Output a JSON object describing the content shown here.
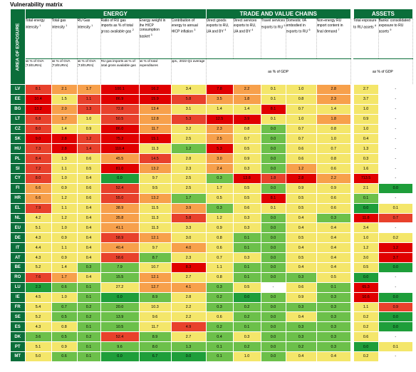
{
  "title": "Vulnerability matrix",
  "group_labels": {
    "energy": "ENERGY",
    "trade": "TRADE AND VALUE CHAINS",
    "assets": "ASSETS"
  },
  "area_label": "AREA OF EXPOSURE",
  "columns": [
    {
      "label": "Total energy intensity",
      "note": "1",
      "unit": "as % of GVA (TJ/EURm)"
    },
    {
      "label": "Total gas intensity",
      "note": "1",
      "unit": "as % of GVA (TJ/EURm)"
    },
    {
      "label": "RU Gas intensity",
      "note": "1",
      "unit": "as % of GVA (TJ/EURm)"
    },
    {
      "label": "Ratio of RU gas imports as % of total gross available gas",
      "note": "2",
      "unit": "RU gas imports as % of total gross available gas"
    },
    {
      "label": "Energy weight in the HICP consumption basket",
      "note": "3",
      "unit": "as % of total expenditures"
    },
    {
      "label": "Contribution of energy to annual HICP inflation",
      "note": "3",
      "unit": "pps., 2022-Q1 average"
    },
    {
      "label": "Direct goods exports to RU, UA and BY",
      "note": "4",
      "unit": ""
    },
    {
      "label": "Direct services exports to RU, UA and BY",
      "note": "4",
      "unit": ""
    },
    {
      "label": "Travel services exports to RU",
      "note": "5",
      "unit": ""
    },
    {
      "label": "Domestic VA embodied in exports to RU",
      "note": "6",
      "unit": ""
    },
    {
      "label": "Non-energy RU import content in final demand",
      "note": "7",
      "unit": ""
    },
    {
      "label": "Total exposure to RU assets",
      "note": "8",
      "unit": ""
    },
    {
      "label": "Banks' consolidated exposure to RU assets",
      "note": "9",
      "unit": ""
    }
  ],
  "trade_unit": "as % of GDP",
  "assets_unit": "as % of GDP",
  "colors": {
    "header_green": "#0b6e3a",
    "scale_dark_green": "#1e9e3a",
    "scale_green": "#6cc04a",
    "scale_yellow": "#f4e66a",
    "scale_orange": "#f7a04b",
    "scale_red": "#e8412c",
    "scale_dark_red": "#e00000"
  },
  "rows": [
    {
      "code": "LV",
      "values": [
        "8.1",
        "2.1",
        "1.7",
        "100.1",
        "16.2",
        "3.4",
        "7.8",
        "2.2",
        "0.1",
        "1.0",
        "2.8",
        "2.7",
        "-"
      ],
      "colors": [
        "r",
        "o",
        "o",
        "R",
        "R",
        "y",
        "R",
        "o",
        "y",
        "y",
        "o",
        "y",
        "w"
      ]
    },
    {
      "code": "EE",
      "values": [
        "10.4",
        "1.5",
        "1.1",
        "86.9",
        "15.9",
        "5.8",
        "3.5",
        "1.8",
        "0.1",
        "0.8",
        "2.3",
        "3.7",
        "-"
      ],
      "colors": [
        "R",
        "y",
        "r",
        "R",
        "R",
        "r",
        "o",
        "o",
        "y",
        "y",
        "o",
        "y",
        "w"
      ]
    },
    {
      "code": "BG",
      "values": [
        "13.2",
        "2.0",
        "1.3",
        "72.8",
        "13.4",
        "3.1",
        "1.4",
        "1.4",
        "8.1",
        "0.7",
        "1.4",
        "1.0",
        "-"
      ],
      "colors": [
        "R",
        "o",
        "r",
        "r",
        "o",
        "y",
        "y",
        "y",
        "R",
        "y",
        "y",
        "y",
        "w"
      ]
    },
    {
      "code": "LT",
      "values": [
        "6.8",
        "1.7",
        "1.0",
        "50.5",
        "12.8",
        "5.3",
        "12.5",
        "3.9",
        "0.1",
        "1.0",
        "1.8",
        "0.9",
        "-"
      ],
      "colors": [
        "r",
        "o",
        "y",
        "r",
        "o",
        "r",
        "R",
        "R",
        "y",
        "y",
        "o",
        "y",
        "w"
      ]
    },
    {
      "code": "CZ",
      "values": [
        "8.0",
        "1.4",
        "0.9",
        "86.0",
        "11.7",
        "3.2",
        "2.3",
        "0.8",
        "0.0",
        "0.7",
        "0.8",
        "1.0",
        "-"
      ],
      "colors": [
        "r",
        "y",
        "y",
        "R",
        "o",
        "y",
        "o",
        "y",
        "g",
        "y",
        "y",
        "y",
        "w"
      ]
    },
    {
      "code": "SK",
      "values": [
        "9.0",
        "2.8",
        "1.2",
        "75.2",
        "15.1",
        "2.5",
        "2.5",
        "0.7",
        "0.0",
        "0.7",
        "1.0",
        "0.4",
        "-"
      ],
      "colors": [
        "R",
        "R",
        "r",
        "R",
        "R",
        "y",
        "o",
        "y",
        "g",
        "y",
        "y",
        "y",
        "w"
      ]
    },
    {
      "code": "HU",
      "values": [
        "7.3",
        "2.8",
        "1.4",
        "110.4",
        "11.3",
        "1.2",
        "5.3",
        "0.5",
        "0.0",
        "0.6",
        "0.7",
        "1.3",
        "-"
      ],
      "colors": [
        "r",
        "R",
        "r",
        "R",
        "y",
        "g",
        "R",
        "y",
        "g",
        "y",
        "y",
        "y",
        "w"
      ]
    },
    {
      "code": "PL",
      "values": [
        "8.4",
        "1.3",
        "0.6",
        "45.5",
        "14.5",
        "2.8",
        "3.0",
        "0.9",
        "0.0",
        "0.6",
        "0.8",
        "0.3",
        "-"
      ],
      "colors": [
        "r",
        "y",
        "y",
        "o",
        "r",
        "y",
        "o",
        "y",
        "g",
        "y",
        "y",
        "y",
        "w"
      ]
    },
    {
      "code": "SI",
      "values": [
        "7.2",
        "1.1",
        "0.5",
        "81.0",
        "13.2",
        "2.3",
        "2.4",
        "0.3",
        "0.0",
        "1.2",
        "0.6",
        "1.6",
        "-"
      ],
      "colors": [
        "r",
        "y",
        "y",
        "R",
        "o",
        "y",
        "o",
        "y",
        "g",
        "o",
        "y",
        "y",
        "w"
      ]
    },
    {
      "code": "CY",
      "values": [
        "8.0",
        "1.0",
        "0.4",
        "0.0",
        "9.7",
        "2.5",
        "0.3",
        "13.8",
        "1.8",
        "2.8",
        "2.2",
        "713.5",
        "-"
      ],
      "colors": [
        "r",
        "y",
        "y",
        "G",
        "y",
        "y",
        "g",
        "R",
        "r",
        "R",
        "o",
        "R",
        "w"
      ]
    },
    {
      "code": "FI",
      "values": [
        "6.6",
        "0.9",
        "0.6",
        "52.4",
        "9.5",
        "2.5",
        "1.7",
        "0.5",
        "0.0",
        "0.9",
        "0.9",
        "2.1",
        "0.0"
      ],
      "colors": [
        "o",
        "y",
        "y",
        "r",
        "y",
        "y",
        "y",
        "y",
        "g",
        "y",
        "y",
        "y",
        "G"
      ]
    },
    {
      "code": "HR",
      "values": [
        "6.6",
        "1.2",
        "0.6",
        "55.0",
        "13.2",
        "1.7",
        "0.5",
        "0.5",
        "8.1",
        "0.5",
        "0.6",
        "0.1",
        "-"
      ],
      "colors": [
        "o",
        "y",
        "y",
        "r",
        "o",
        "g",
        "y",
        "y",
        "R",
        "y",
        "y",
        "g",
        "w"
      ]
    },
    {
      "code": "EL",
      "values": [
        "7.9",
        "1.1",
        "0.4",
        "38.9",
        "11.5",
        "3.9",
        "0.3",
        "0.6",
        "0.1",
        "0.5",
        "0.6",
        "0.0",
        "0.1"
      ],
      "colors": [
        "r",
        "y",
        "y",
        "o",
        "y",
        "o",
        "g",
        "y",
        "y",
        "y",
        "y",
        "G",
        "y"
      ]
    },
    {
      "code": "NL",
      "values": [
        "4.2",
        "1.2",
        "0.4",
        "35.8",
        "11.3",
        "5.8",
        "1.2",
        "0.3",
        "0.0",
        "0.4",
        "0.3",
        "11.8",
        "0.7"
      ],
      "colors": [
        "y",
        "y",
        "y",
        "o",
        "y",
        "r",
        "y",
        "y",
        "g",
        "y",
        "g",
        "R",
        "r"
      ]
    },
    {
      "code": "EU",
      "values": [
        "5.1",
        "1.0",
        "0.4",
        "41.1",
        "11.3",
        "3.3",
        "0.9",
        "0.3",
        "0.0",
        "0.4",
        "0.4",
        "3.4",
        "-"
      ],
      "colors": [
        "y",
        "y",
        "y",
        "o",
        "y",
        "y",
        "y",
        "y",
        "g",
        "y",
        "y",
        "y",
        "w"
      ]
    },
    {
      "code": "DE",
      "values": [
        "4.3",
        "0.9",
        "0.4",
        "58.9",
        "12.1",
        "3.0",
        "0.8",
        "0.1",
        "0.0",
        "0.5",
        "0.4",
        "1.0",
        "0.2"
      ],
      "colors": [
        "y",
        "y",
        "y",
        "r",
        "o",
        "y",
        "y",
        "g",
        "g",
        "y",
        "y",
        "y",
        "y"
      ]
    },
    {
      "code": "IT",
      "values": [
        "4.4",
        "1.1",
        "0.4",
        "40.4",
        "9.7",
        "4.0",
        "0.6",
        "0.1",
        "0.0",
        "0.4",
        "0.4",
        "1.2",
        "1.2"
      ],
      "colors": [
        "y",
        "y",
        "y",
        "o",
        "y",
        "o",
        "y",
        "g",
        "g",
        "y",
        "y",
        "y",
        "R"
      ]
    },
    {
      "code": "AT",
      "values": [
        "4.3",
        "0.9",
        "0.4",
        "58.6",
        "8.7",
        "2.3",
        "0.7",
        "0.3",
        "0.0",
        "0.5",
        "0.4",
        "3.0",
        "3.7"
      ],
      "colors": [
        "y",
        "y",
        "y",
        "r",
        "g",
        "y",
        "y",
        "y",
        "g",
        "y",
        "y",
        "y",
        "R"
      ]
    },
    {
      "code": "BE",
      "values": [
        "5.2",
        "1.4",
        "0.3",
        "7.9",
        "10.7",
        "8.3",
        "1.1",
        "0.1",
        "0.0",
        "0.4",
        "0.4",
        "0.5",
        "0.0"
      ],
      "colors": [
        "y",
        "y",
        "g",
        "g",
        "y",
        "R",
        "y",
        "g",
        "g",
        "y",
        "y",
        "y",
        "G"
      ]
    },
    {
      "code": "RO",
      "values": [
        "7.6",
        "1.7",
        "0.4",
        "15.5",
        "12.1",
        "2.7",
        "0.8",
        "0.1",
        "0.0",
        "0.3",
        "0.5",
        "0.0",
        "-"
      ],
      "colors": [
        "r",
        "o",
        "y",
        "g",
        "o",
        "y",
        "y",
        "g",
        "g",
        "g",
        "y",
        "G",
        "w"
      ]
    },
    {
      "code": "LU",
      "values": [
        "2.3",
        "0.6",
        "0.1",
        "27.2",
        "12.7",
        "4.1",
        "0.3",
        "0.5",
        "-",
        "0.6",
        "0.1",
        "65.3",
        "-"
      ],
      "colors": [
        "G",
        "g",
        "g",
        "y",
        "o",
        "o",
        "g",
        "y",
        "w",
        "y",
        "g",
        "R",
        "w"
      ]
    },
    {
      "code": "IE",
      "values": [
        "4.5",
        "1.0",
        "0.1",
        "0.0",
        "8.9",
        "2.8",
        "0.2",
        "0.0",
        "0.0",
        "0.9",
        "0.3",
        "10.6",
        "0.0"
      ],
      "colors": [
        "y",
        "y",
        "g",
        "G",
        "g",
        "y",
        "g",
        "G",
        "g",
        "y",
        "g",
        "R",
        "G"
      ]
    },
    {
      "code": "FR",
      "values": [
        "5.4",
        "0.7",
        "0.2",
        "20.0",
        "10.3",
        "2.2",
        "0.3",
        "0.2",
        "0.0",
        "0.3",
        "0.3",
        "1.1",
        "0.9"
      ],
      "colors": [
        "y",
        "g",
        "g",
        "g",
        "y",
        "y",
        "g",
        "g",
        "g",
        "g",
        "g",
        "y",
        "r"
      ]
    },
    {
      "code": "SE",
      "values": [
        "5.2",
        "0.5",
        "0.2",
        "13.9",
        "9.6",
        "2.2",
        "0.6",
        "0.2",
        "0.0",
        "0.4",
        "0.3",
        "0.2",
        "0.0"
      ],
      "colors": [
        "y",
        "g",
        "g",
        "g",
        "y",
        "y",
        "y",
        "g",
        "g",
        "y",
        "g",
        "y",
        "G"
      ]
    },
    {
      "code": "ES",
      "values": [
        "4.3",
        "0.8",
        "0.1",
        "10.5",
        "11.7",
        "4.9",
        "0.2",
        "0.1",
        "0.0",
        "0.3",
        "0.3",
        "0.2",
        "0.0"
      ],
      "colors": [
        "y",
        "y",
        "g",
        "g",
        "y",
        "r",
        "g",
        "g",
        "g",
        "g",
        "g",
        "y",
        "G"
      ]
    },
    {
      "code": "DK",
      "values": [
        "3.6",
        "0.5",
        "0.2",
        "52.4",
        "8.9",
        "2.7",
        "0.4",
        "0.3",
        "0.0",
        "0.3",
        "0.3",
        "0.6",
        "-"
      ],
      "colors": [
        "g",
        "g",
        "g",
        "r",
        "g",
        "y",
        "g",
        "y",
        "g",
        "g",
        "g",
        "y",
        "w"
      ]
    },
    {
      "code": "PT",
      "values": [
        "5.1",
        "0.9",
        "0.1",
        "9.6",
        "8.0",
        "1.3",
        "0.1",
        "0.2",
        "0.0",
        "0.2",
        "0.3",
        "0.0",
        "0.1"
      ],
      "colors": [
        "y",
        "y",
        "g",
        "g",
        "g",
        "g",
        "g",
        "g",
        "g",
        "g",
        "g",
        "G",
        "y"
      ]
    },
    {
      "code": "MT",
      "values": [
        "5.0",
        "0.6",
        "0.1",
        "0.0",
        "6.7",
        "0.0",
        "0.1",
        "1.0",
        "0.0",
        "0.4",
        "0.4",
        "0.2",
        "-"
      ],
      "colors": [
        "y",
        "g",
        "g",
        "G",
        "G",
        "G",
        "g",
        "y",
        "g",
        "y",
        "y",
        "y",
        "w"
      ]
    }
  ]
}
